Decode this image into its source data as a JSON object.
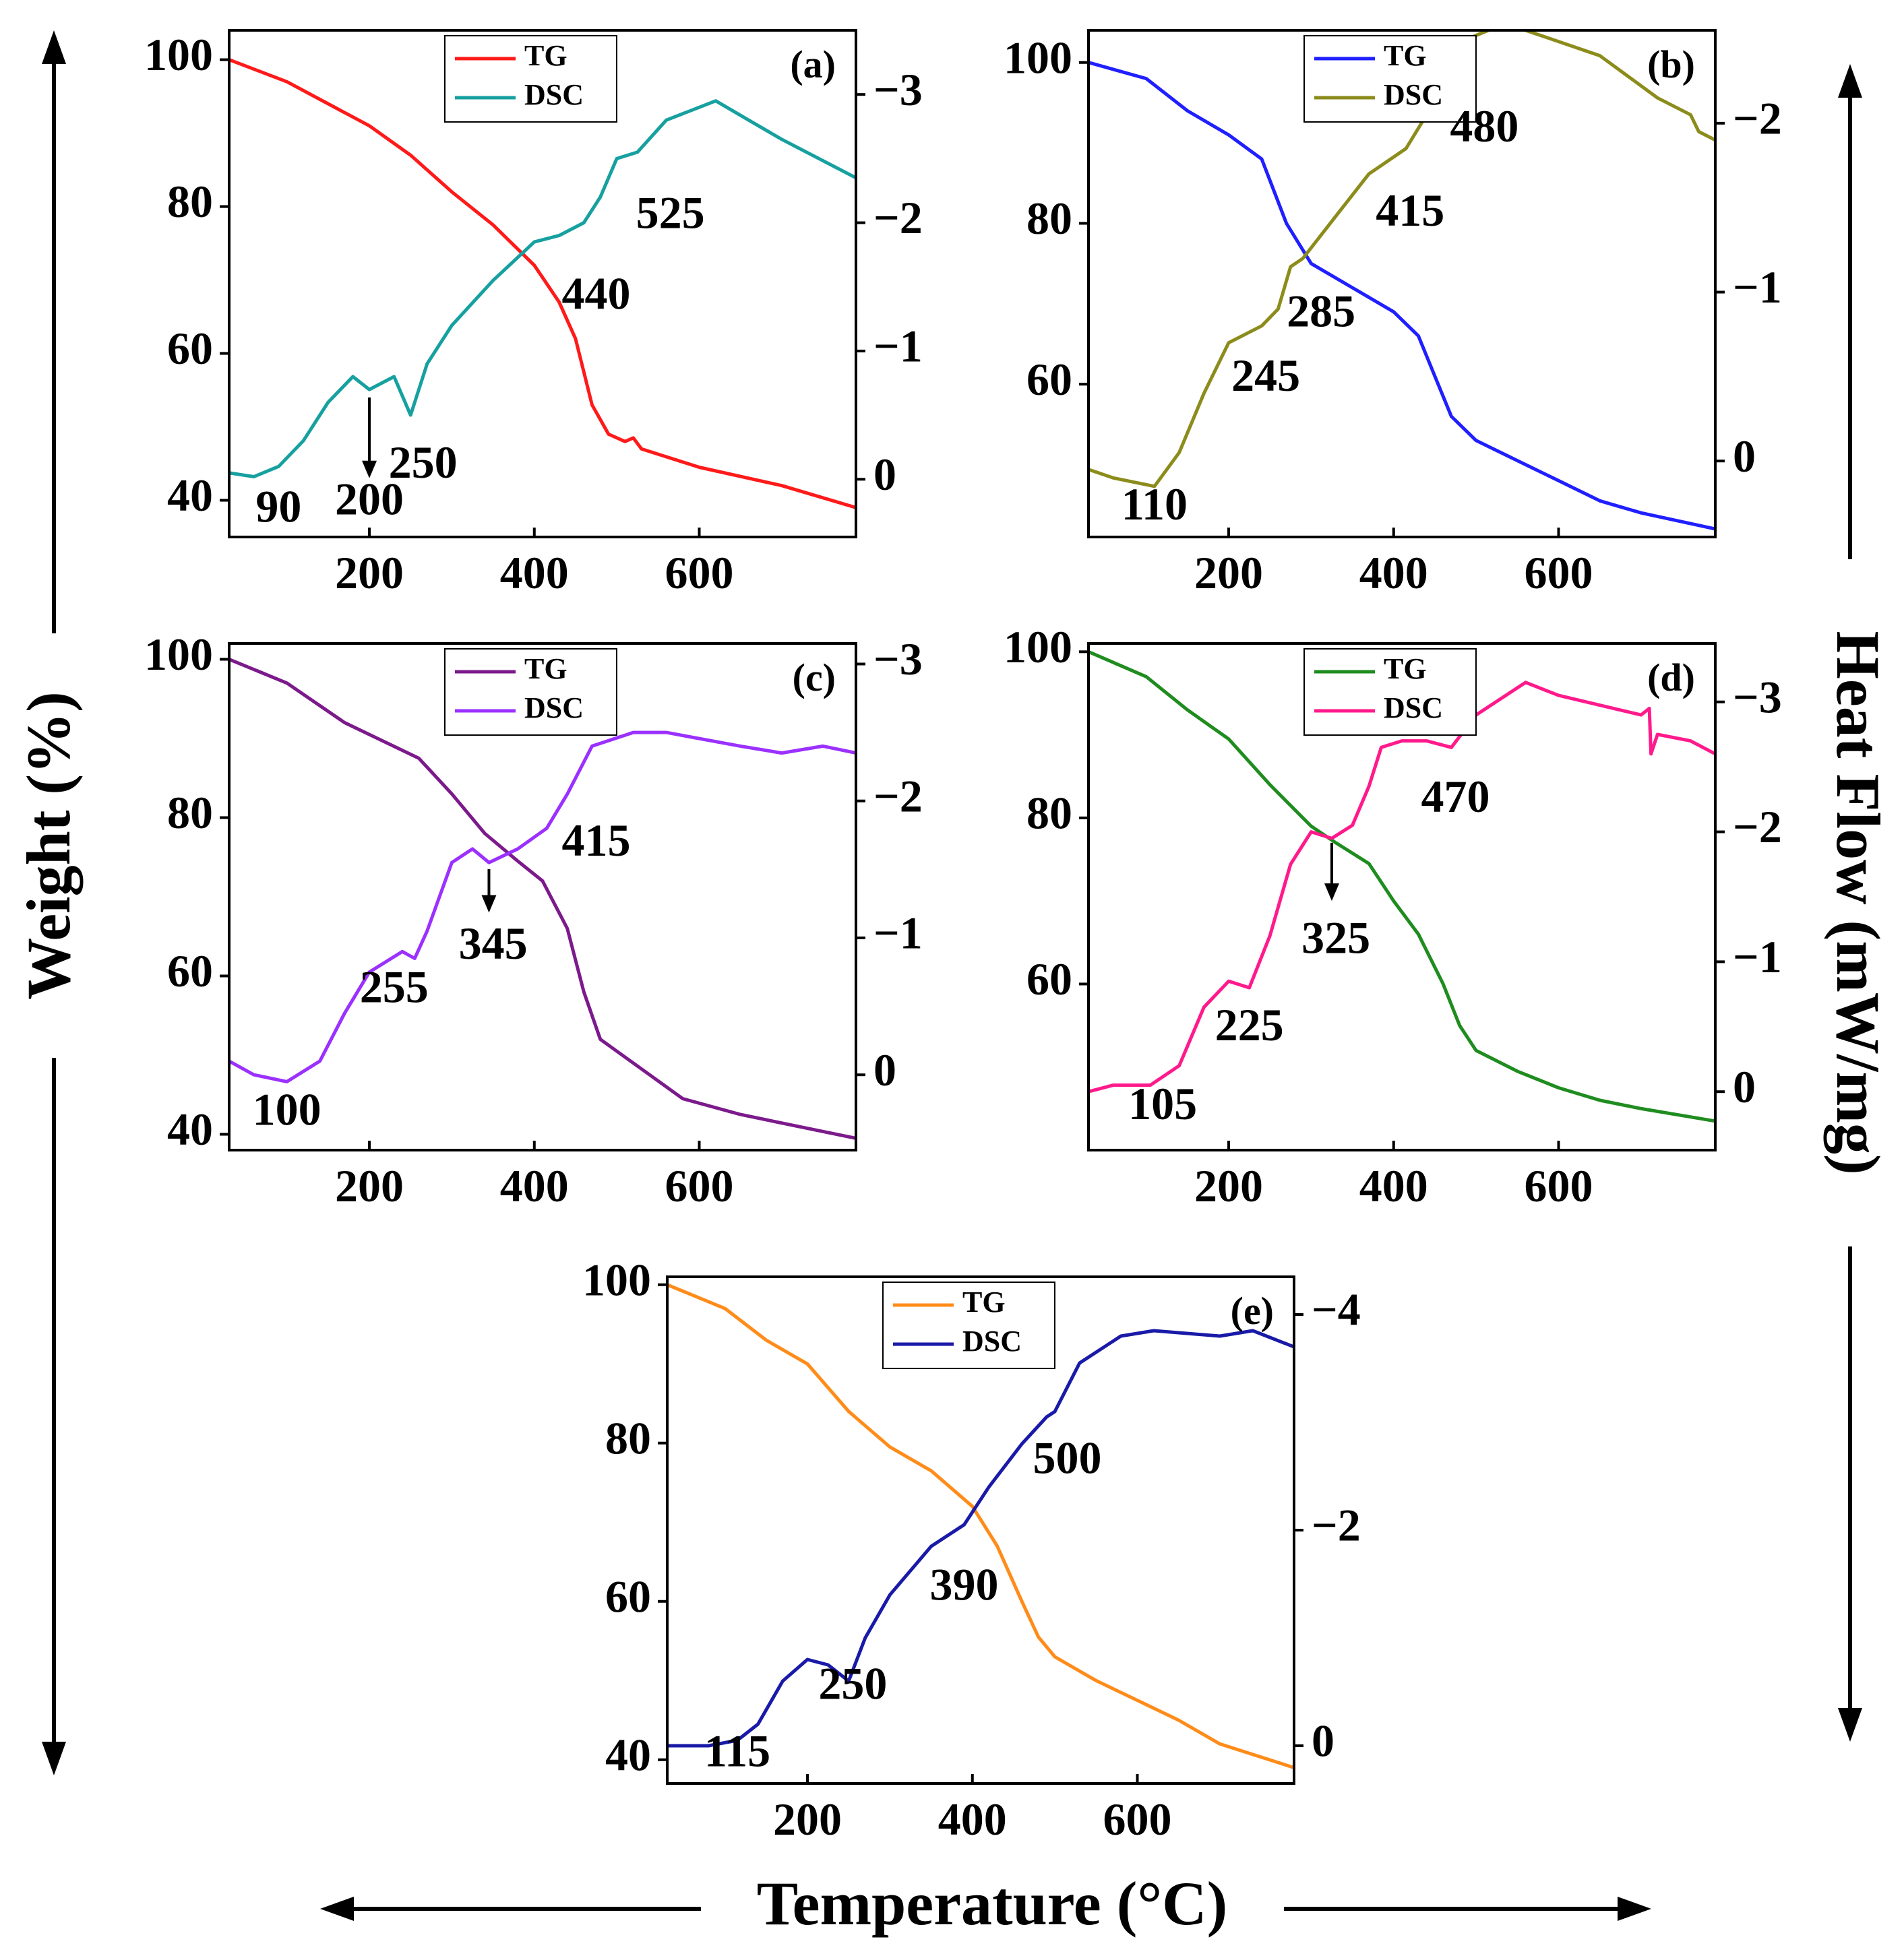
{
  "figure": {
    "y_label": "Weight (%)",
    "y2_label": "Heat Flow (mW/mg)",
    "x_label": "Temperature (°C)"
  },
  "chart_data": [
    {
      "panel": "(a)",
      "type": "line",
      "xlim": [
        30,
        790
      ],
      "ylim": [
        35,
        104
      ],
      "y2lim": [
        0.45,
        -3.5
      ],
      "x_ticks": [
        200,
        400,
        600
      ],
      "y_ticks": [
        40,
        60,
        80,
        100
      ],
      "y2_ticks": [
        0,
        -1,
        -2,
        -3
      ],
      "y2_tick_labels": [
        "0",
        "−1",
        "−2",
        "−3"
      ],
      "legend": {
        "position": "top-center"
      },
      "series": [
        {
          "name": "TG",
          "axis": "left",
          "color": "#ff1a1a",
          "x": [
            30,
            100,
            150,
            200,
            250,
            300,
            350,
            400,
            430,
            450,
            470,
            490,
            510,
            520,
            530,
            600,
            700,
            790
          ],
          "y": [
            100,
            97,
            94,
            91,
            87,
            82,
            77.5,
            72,
            67,
            62,
            53,
            49,
            48,
            48.5,
            47,
            44.5,
            42,
            39
          ]
        },
        {
          "name": "DSC",
          "axis": "right",
          "color": "#17a0a0",
          "x": [
            30,
            60,
            90,
            120,
            150,
            180,
            200,
            230,
            250,
            270,
            300,
            350,
            400,
            430,
            460,
            480,
            500,
            525,
            560,
            620,
            660,
            700,
            790
          ],
          "y": [
            -0.05,
            -0.02,
            -0.1,
            -0.3,
            -0.6,
            -0.8,
            -0.7,
            -0.8,
            -0.5,
            -0.9,
            -1.2,
            -1.55,
            -1.85,
            -1.9,
            -2.0,
            -2.2,
            -2.5,
            -2.55,
            -2.8,
            -2.95,
            -2.8,
            -2.65,
            -2.35
          ]
        }
      ],
      "annotations": [
        {
          "text": "90",
          "x": 90,
          "y": 38.5
        },
        {
          "text": "200",
          "x": 200,
          "y": 39.5
        },
        {
          "text": "250",
          "x": 265,
          "y": 44.5
        },
        {
          "text": "440",
          "x": 475,
          "y": 67.5
        },
        {
          "text": "525",
          "x": 565,
          "y": 78.5
        }
      ],
      "arrows": [
        {
          "x": 200,
          "y_from": 54,
          "y_to": 43
        }
      ]
    },
    {
      "panel": "(b)",
      "type": "line",
      "xlim": [
        30,
        790
      ],
      "ylim": [
        41,
        104
      ],
      "y2lim": [
        0.45,
        -2.55
      ],
      "x_ticks": [
        200,
        400,
        600
      ],
      "y_ticks": [
        60,
        80,
        100
      ],
      "y2_ticks": [
        0,
        -1,
        -2
      ],
      "y2_tick_labels": [
        "0",
        "−1",
        "−2"
      ],
      "legend": {
        "position": "top-center"
      },
      "series": [
        {
          "name": "TG",
          "axis": "left",
          "color": "#1f1fff",
          "x": [
            30,
            100,
            150,
            200,
            240,
            270,
            300,
            350,
            400,
            430,
            450,
            470,
            500,
            550,
            600,
            650,
            700,
            790
          ],
          "y": [
            100,
            98,
            94,
            91,
            88,
            80,
            75,
            72,
            69,
            66,
            61,
            56,
            53,
            50.5,
            48,
            45.5,
            44,
            42
          ]
        },
        {
          "name": "DSC",
          "axis": "right",
          "color": "#8c8c1c",
          "x": [
            30,
            60,
            110,
            140,
            170,
            200,
            240,
            260,
            275,
            290,
            330,
            370,
            415,
            440,
            470,
            490,
            540,
            560,
            650,
            720,
            760,
            770,
            790
          ],
          "y": [
            0.05,
            0.1,
            0.15,
            -0.05,
            -0.4,
            -0.7,
            -0.8,
            -0.9,
            -1.15,
            -1.2,
            -1.45,
            -1.7,
            -1.85,
            -2.05,
            -2.4,
            -2.5,
            -2.6,
            -2.55,
            -2.4,
            -2.15,
            -2.05,
            -1.95,
            -1.9
          ]
        }
      ],
      "annotations": [
        {
          "text": "110",
          "x": 110,
          "y": 44.5
        },
        {
          "text": "245",
          "x": 245,
          "y": 60.5
        },
        {
          "text": "285",
          "x": 312,
          "y": 68.5
        },
        {
          "text": "415",
          "x": 420,
          "y": 81
        },
        {
          "text": "480",
          "x": 510,
          "y": 91.5
        }
      ],
      "arrows": []
    },
    {
      "panel": "(c)",
      "type": "line",
      "xlim": [
        30,
        790
      ],
      "ylim": [
        38,
        102
      ],
      "y2lim": [
        0.55,
        -3.15
      ],
      "x_ticks": [
        200,
        400,
        600
      ],
      "y_ticks": [
        40,
        60,
        80,
        100
      ],
      "y2_ticks": [
        0,
        -1,
        -2,
        -3
      ],
      "y2_tick_labels": [
        "0",
        "−1",
        "−2",
        "−3"
      ],
      "legend": {
        "position": "top-center"
      },
      "series": [
        {
          "name": "TG",
          "axis": "left",
          "color": "#7c1a8c",
          "x": [
            30,
            100,
            170,
            200,
            260,
            300,
            340,
            380,
            410,
            440,
            460,
            480,
            500,
            540,
            580,
            650,
            720,
            790
          ],
          "y": [
            100,
            97,
            92,
            90.5,
            87.5,
            83,
            78,
            74.5,
            72,
            66,
            58,
            52,
            50.5,
            47.5,
            44.5,
            42.5,
            41,
            39.5
          ]
        },
        {
          "name": "DSC",
          "axis": "right",
          "color": "#9b30ff",
          "x": [
            30,
            60,
            100,
            140,
            170,
            200,
            240,
            255,
            270,
            300,
            325,
            345,
            380,
            415,
            440,
            470,
            520,
            560,
            650,
            700,
            750,
            790
          ],
          "y": [
            -0.1,
            0,
            0.05,
            -0.1,
            -0.45,
            -0.75,
            -0.9,
            -0.85,
            -1.05,
            -1.55,
            -1.65,
            -1.55,
            -1.65,
            -1.8,
            -2.05,
            -2.4,
            -2.5,
            -2.5,
            -2.4,
            -2.35,
            -2.4,
            -2.35
          ]
        }
      ],
      "annotations": [
        {
          "text": "100",
          "x": 100,
          "y": 42.5
        },
        {
          "text": "255",
          "x": 230,
          "y": 58
        },
        {
          "text": "345",
          "x": 350,
          "y": 63.5
        },
        {
          "text": "415",
          "x": 475,
          "y": 76.5
        }
      ],
      "arrows": [
        {
          "x": 345,
          "y_from": 73.5,
          "y_to": 68
        }
      ]
    },
    {
      "panel": "(d)",
      "type": "line",
      "xlim": [
        30,
        790
      ],
      "ylim": [
        40,
        101
      ],
      "y2lim": [
        0.45,
        -3.45
      ],
      "x_ticks": [
        200,
        400,
        600
      ],
      "y_ticks": [
        60,
        80,
        100
      ],
      "y2_ticks": [
        0,
        -1,
        -2,
        -3
      ],
      "y2_tick_labels": [
        "0",
        "−1",
        "−2",
        "−3"
      ],
      "legend": {
        "position": "top-center"
      },
      "series": [
        {
          "name": "TG",
          "axis": "left",
          "color": "#1f8c1f",
          "x": [
            30,
            100,
            150,
            200,
            250,
            300,
            330,
            370,
            400,
            430,
            460,
            480,
            500,
            550,
            600,
            650,
            700,
            790
          ],
          "y": [
            100,
            97,
            93,
            89.5,
            84,
            79,
            77,
            74.5,
            70,
            66,
            60,
            55,
            52,
            49.5,
            47.5,
            46,
            45,
            43.5
          ]
        },
        {
          "name": "DSC",
          "axis": "right",
          "color": "#ff1a8c",
          "x": [
            30,
            60,
            105,
            140,
            170,
            200,
            225,
            250,
            275,
            300,
            325,
            350,
            370,
            385,
            410,
            440,
            470,
            500,
            560,
            600,
            700,
            710,
            712,
            720,
            760,
            790
          ],
          "y": [
            0,
            -0.05,
            -0.05,
            -0.2,
            -0.65,
            -0.85,
            -0.8,
            -1.2,
            -1.75,
            -2.0,
            -1.95,
            -2.05,
            -2.35,
            -2.65,
            -2.7,
            -2.7,
            -2.65,
            -2.9,
            -3.15,
            -3.05,
            -2.9,
            -2.95,
            -2.6,
            -2.75,
            -2.7,
            -2.6
          ]
        }
      ],
      "annotations": [
        {
          "text": "105",
          "x": 120,
          "y": 45
        },
        {
          "text": "225",
          "x": 225,
          "y": 54.5
        },
        {
          "text": "325",
          "x": 330,
          "y": 65
        },
        {
          "text": "470",
          "x": 475,
          "y": 82
        }
      ],
      "arrows": [
        {
          "x": 325,
          "y_from": 77,
          "y_to": 70
        }
      ]
    },
    {
      "panel": "(e)",
      "type": "line",
      "xlim": [
        30,
        790
      ],
      "ylim": [
        37,
        101
      ],
      "y2lim": [
        0.35,
        -4.35
      ],
      "x_ticks": [
        200,
        400,
        600
      ],
      "y_ticks": [
        40,
        60,
        80,
        100
      ],
      "y2_ticks": [
        0,
        -2,
        -4
      ],
      "y2_tick_labels": [
        "0",
        "−2",
        "−4"
      ],
      "legend": {
        "position": "top-center"
      },
      "series": [
        {
          "name": "TG",
          "axis": "left",
          "color": "#ff8c1a",
          "x": [
            30,
            100,
            150,
            200,
            250,
            300,
            350,
            400,
            430,
            460,
            480,
            500,
            550,
            600,
            650,
            700,
            790
          ],
          "y": [
            100,
            97,
            93,
            90,
            84,
            79.5,
            76.5,
            72,
            67,
            60,
            55.5,
            53,
            50,
            47.5,
            45,
            42,
            39
          ]
        },
        {
          "name": "DSC",
          "axis": "right",
          "color": "#1a1aa8",
          "x": [
            30,
            80,
            115,
            140,
            170,
            200,
            225,
            250,
            270,
            300,
            350,
            390,
            420,
            460,
            490,
            500,
            530,
            580,
            620,
            700,
            740,
            790
          ],
          "y": [
            0,
            0,
            -0.05,
            -0.2,
            -0.6,
            -0.8,
            -0.75,
            -0.6,
            -1.0,
            -1.4,
            -1.85,
            -2.05,
            -2.4,
            -2.8,
            -3.05,
            -3.1,
            -3.55,
            -3.8,
            -3.85,
            -3.8,
            -3.85,
            -3.7
          ]
        }
      ],
      "annotations": [
        {
          "text": "115",
          "x": 115,
          "y": 40.5
        },
        {
          "text": "250",
          "x": 255,
          "y": 49
        },
        {
          "text": "390",
          "x": 390,
          "y": 61.5
        },
        {
          "text": "500",
          "x": 515,
          "y": 77.5
        }
      ],
      "arrows": []
    }
  ]
}
